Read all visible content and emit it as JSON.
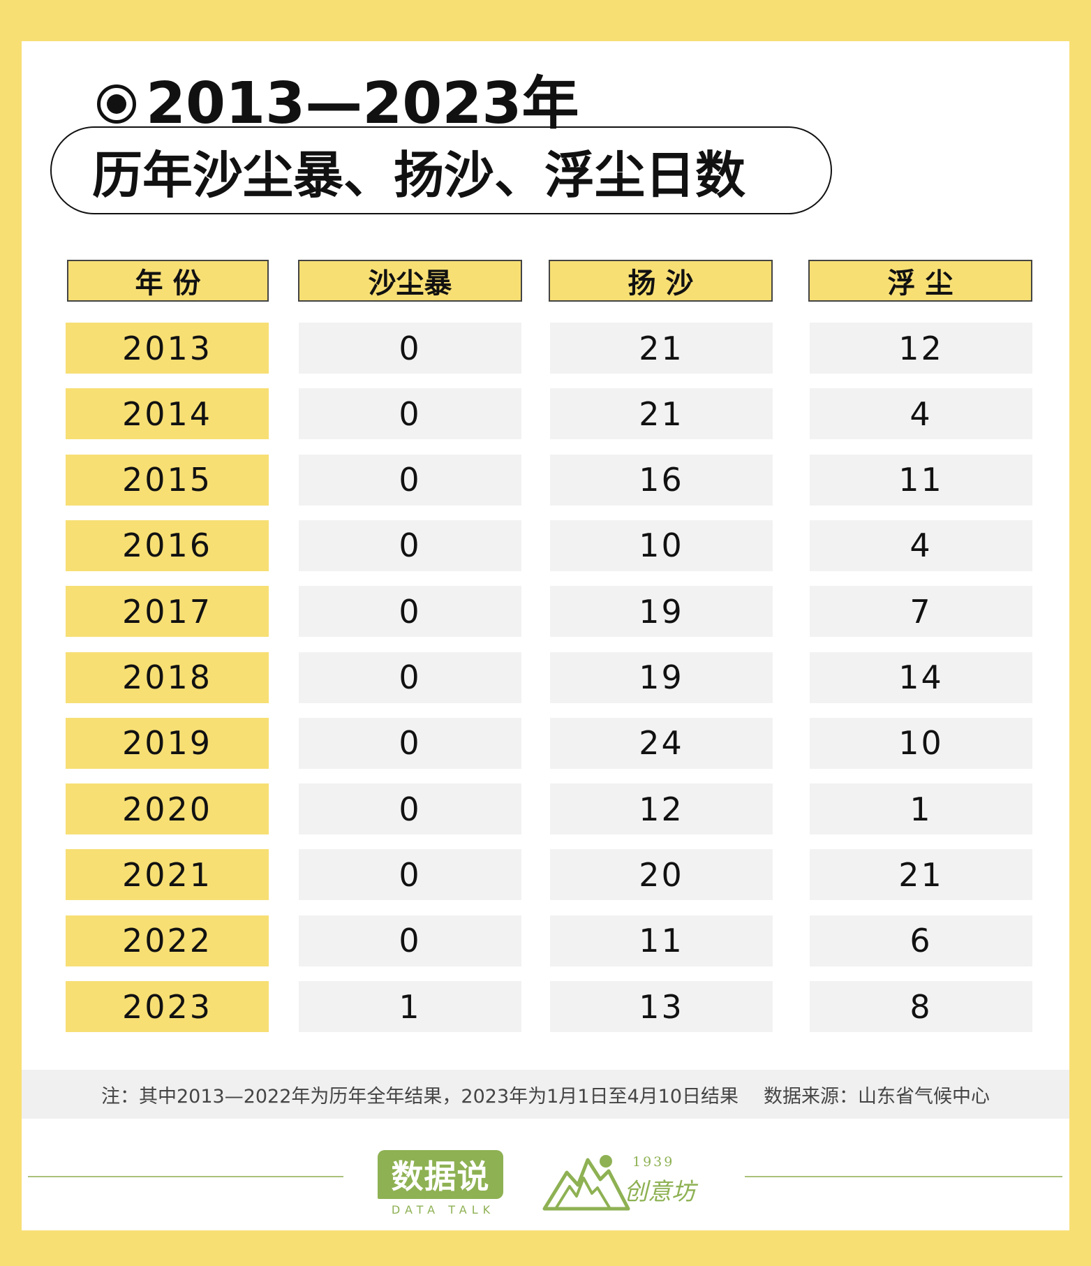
{
  "title": {
    "line1": "2013—2023年",
    "line2": "历年沙尘暴、扬沙、浮尘日数"
  },
  "table": {
    "headers": [
      "年 份",
      "沙尘暴",
      "扬 沙",
      "浮 尘"
    ],
    "rows": [
      [
        "2013",
        "0",
        "21",
        "12"
      ],
      [
        "2014",
        "0",
        "21",
        "4"
      ],
      [
        "2015",
        "0",
        "16",
        "11"
      ],
      [
        "2016",
        "0",
        "10",
        "4"
      ],
      [
        "2017",
        "0",
        "19",
        "7"
      ],
      [
        "2018",
        "0",
        "19",
        "14"
      ],
      [
        "2019",
        "0",
        "24",
        "10"
      ],
      [
        "2020",
        "0",
        "12",
        "1"
      ],
      [
        "2021",
        "0",
        "20",
        "21"
      ],
      [
        "2022",
        "0",
        "11",
        "6"
      ],
      [
        "2023",
        "1",
        "13",
        "8"
      ]
    ]
  },
  "footnote": {
    "note": "注：其中2013—2022年为历年全年结果，2023年为1月1日至4月10日结果",
    "source": "数据来源：山东省气候中心"
  },
  "logos": {
    "data_talk_cn": "数据说",
    "data_talk_en": "DATA TALK",
    "studio_year": "1939",
    "studio_name": "创意坊"
  },
  "colors": {
    "accent_yellow": "#f7df74",
    "data_cell": "#f2f2f2",
    "logo_green": "#8eb153"
  }
}
